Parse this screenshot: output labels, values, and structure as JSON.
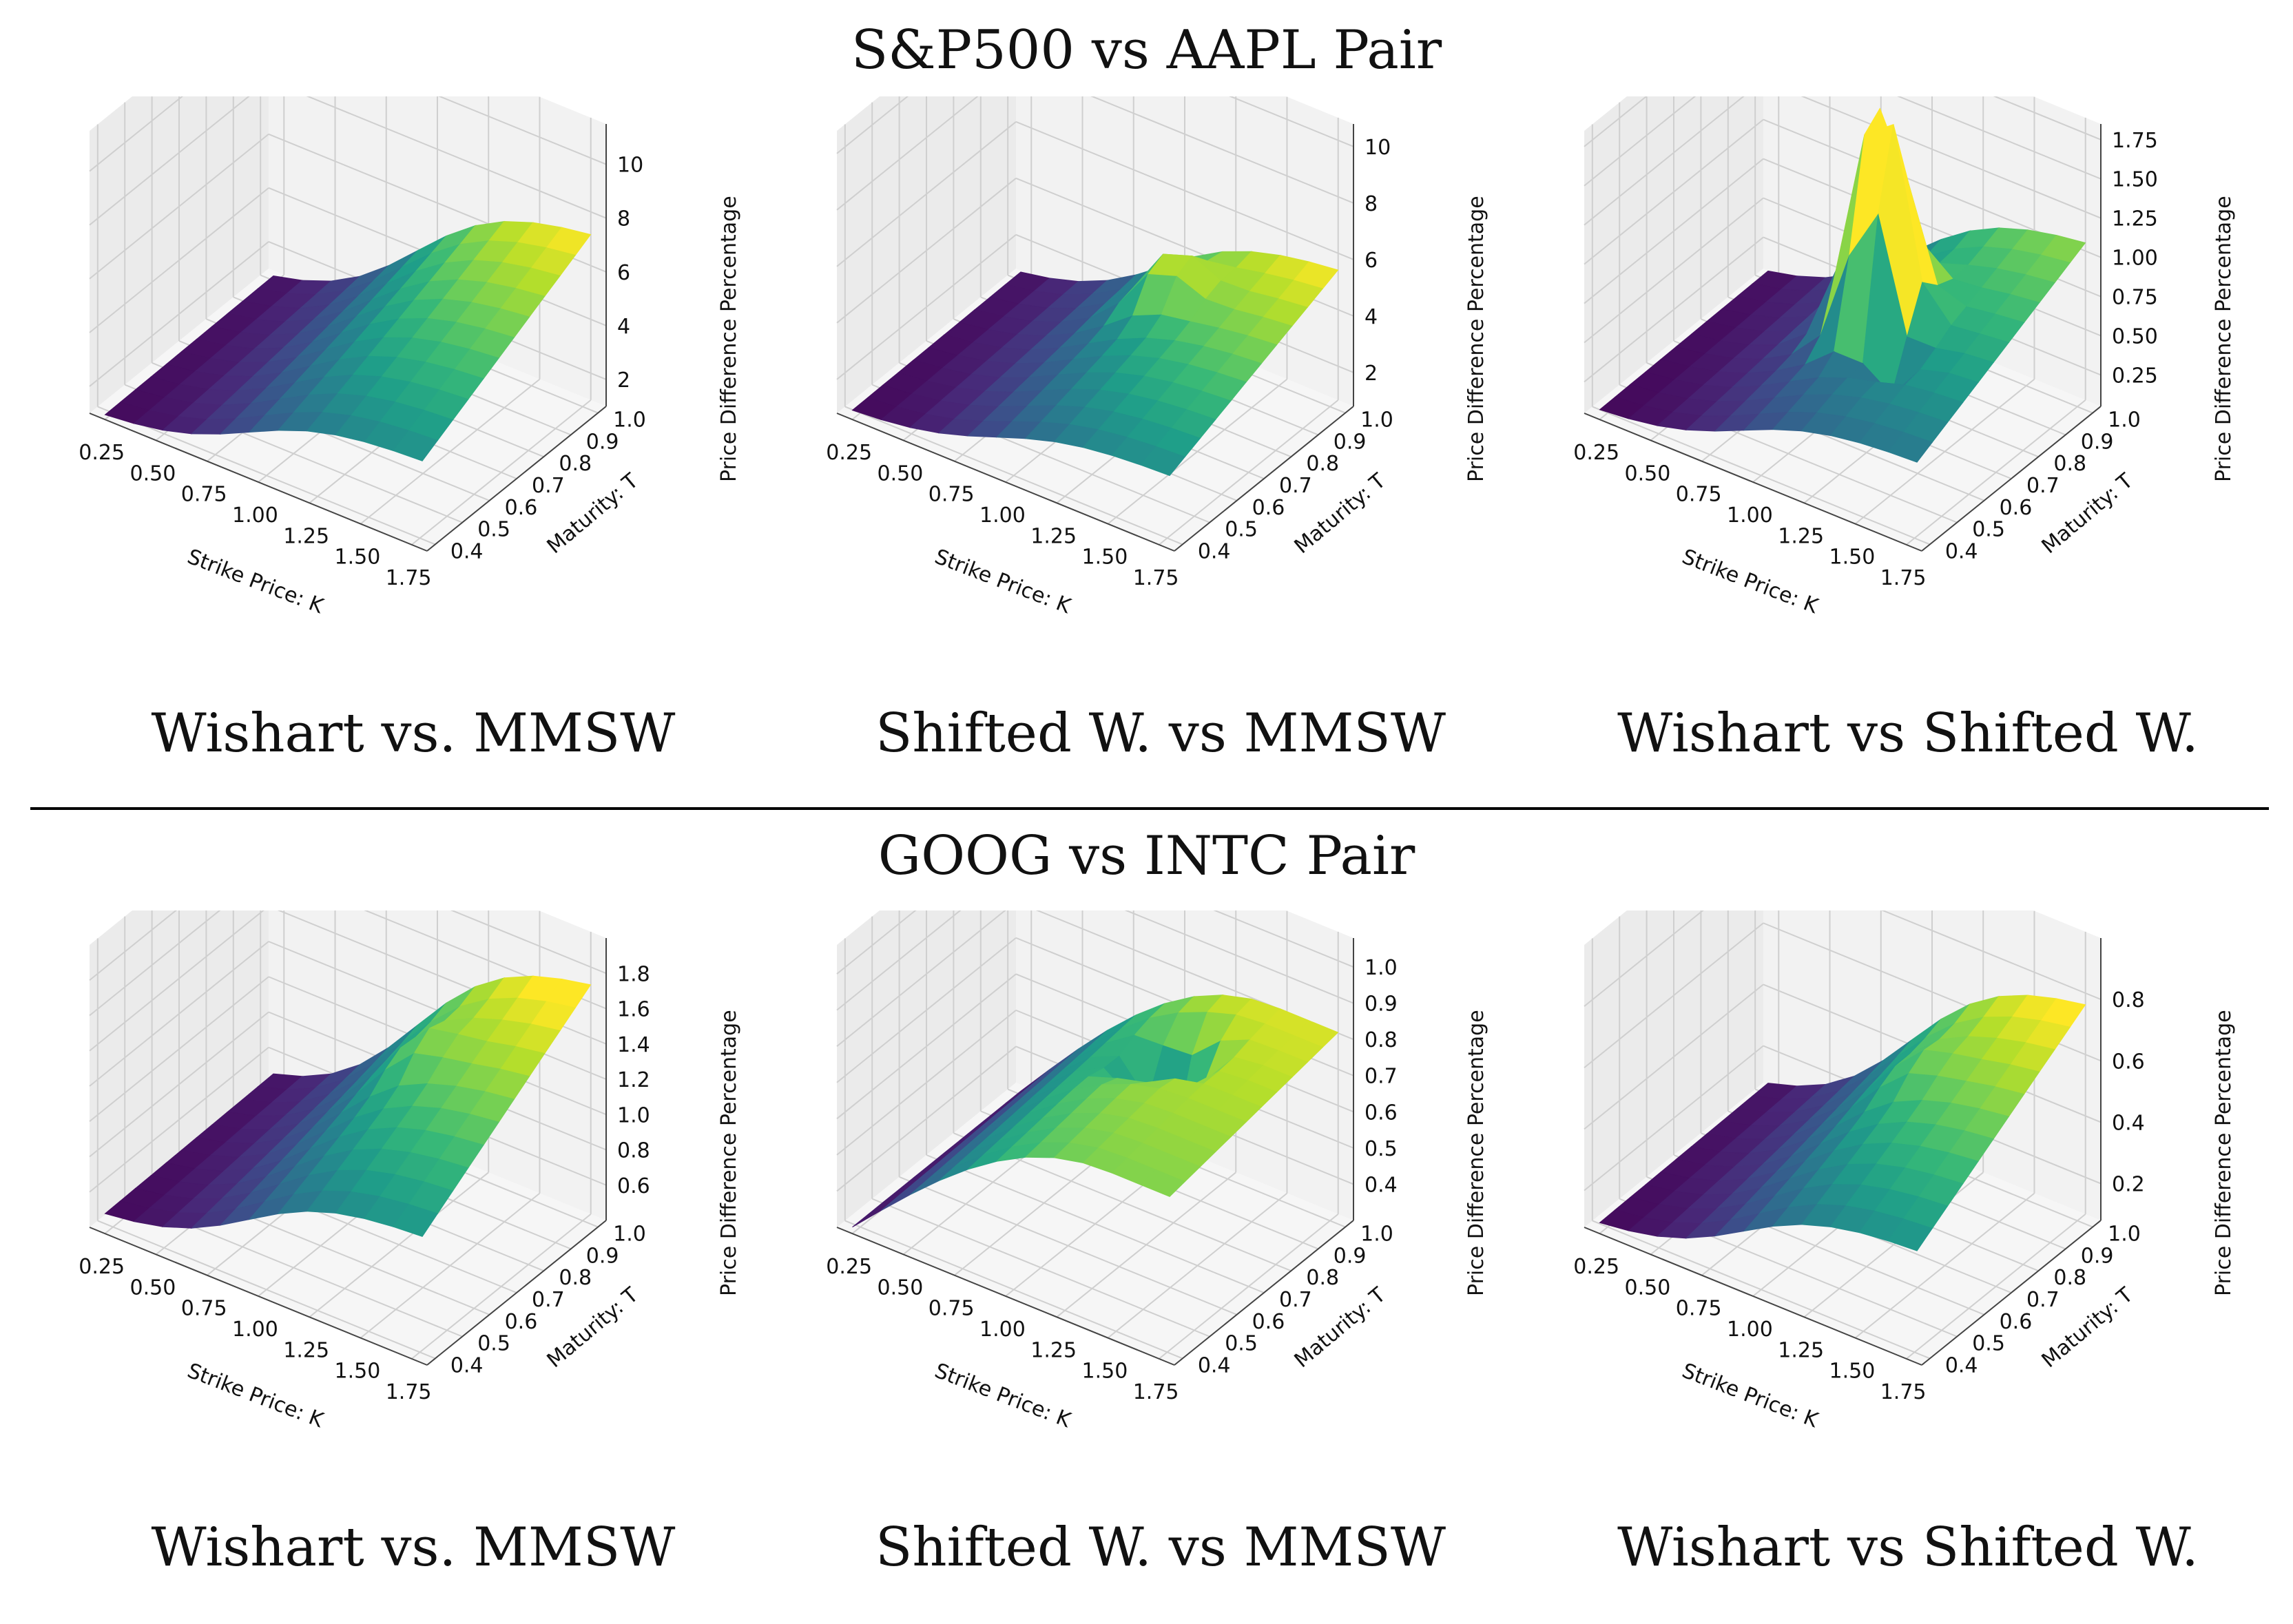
{
  "sections": [
    {
      "title": "S&P500 vs AAPL Pair"
    },
    {
      "title": "GOOG vs INTC Pair"
    }
  ],
  "colors": {
    "pane": "#f2f2f2",
    "grid": "#cfcfcf",
    "viridis": [
      "#440154",
      "#482878",
      "#3e4a89",
      "#31688e",
      "#26828e",
      "#1f9e89",
      "#35b779",
      "#6ece58",
      "#b5de2b",
      "#fde725"
    ]
  },
  "chart_data": [
    {
      "type": "surface3d",
      "section": 0,
      "title": "Wishart vs. MMSW",
      "xlabel": "Strike Price: K",
      "ylabel": "Maturity: T",
      "zlabel": "Price Difference Percentage",
      "xticks": [
        "0.25",
        "0.50",
        "0.75",
        "1.00",
        "1.25",
        "1.50",
        "1.75"
      ],
      "yticks": [
        "0.4",
        "0.5",
        "0.6",
        "0.7",
        "0.8",
        "0.9",
        "1.0"
      ],
      "zticks": [
        "2",
        "4",
        "6",
        "8",
        "10"
      ],
      "zlim": [
        1,
        11.5
      ],
      "surface": {
        "model": "ridge",
        "zmin": 0.8,
        "zmax": 6.8,
        "spike": 0,
        "spike_x": 0.57,
        "spike_y": 0.82,
        "max": 7.3,
        "curv": 0.5,
        "seed": 1
      }
    },
    {
      "type": "surface3d",
      "section": 0,
      "title": "Shifted W. vs MMSW",
      "xlabel": "Strike Price: K",
      "ylabel": "Maturity: T",
      "zlabel": "Price Difference Percentage",
      "xticks": [
        "0.25",
        "0.50",
        "0.75",
        "1.00",
        "1.25",
        "1.50",
        "1.75"
      ],
      "yticks": [
        "0.4",
        "0.5",
        "0.6",
        "0.7",
        "0.8",
        "0.9",
        "1.0"
      ],
      "zticks": [
        "2",
        "4",
        "6",
        "8",
        "10"
      ],
      "zlim": [
        0.8,
        10.8
      ],
      "surface": {
        "model": "ridge",
        "zmin": 0.8,
        "zmax": 5.2,
        "spike": 1.6,
        "spike_x": 0.58,
        "spike_y": 0.78,
        "max": 5.6,
        "curv": 0.5,
        "seed": 2
      }
    },
    {
      "type": "surface3d",
      "section": 0,
      "title": "Wishart vs Shifted W.",
      "xlabel": "Strike Price: K",
      "ylabel": "Maturity: T",
      "zlabel": "Price Difference Percentage",
      "xticks": [
        "0.25",
        "0.50",
        "0.75",
        "1.00",
        "1.25",
        "1.50",
        "1.75"
      ],
      "yticks": [
        "0.4",
        "0.5",
        "0.6",
        "0.7",
        "0.8",
        "0.9",
        "1.0"
      ],
      "zticks": [
        "0.25",
        "0.50",
        "0.75",
        "1.00",
        "1.25",
        "1.50",
        "1.75"
      ],
      "zlim": [
        0.05,
        1.85
      ],
      "surface": {
        "model": "spiky",
        "zmin": 0.05,
        "zmax": 1.0,
        "spike": 1.25,
        "spike_x": 0.55,
        "spike_y": 0.62,
        "max": 1.3,
        "curv": 0.3,
        "seed": 3
      }
    },
    {
      "type": "surface3d",
      "section": 1,
      "title": "Wishart vs. MMSW",
      "xlabel": "Strike Price: K",
      "ylabel": "Maturity: T",
      "zlabel": "Price Difference Percentage",
      "xticks": [
        "0.25",
        "0.50",
        "0.75",
        "1.00",
        "1.25",
        "1.50",
        "1.75"
      ],
      "yticks": [
        "0.4",
        "0.5",
        "0.6",
        "0.7",
        "0.8",
        "0.9",
        "1.0"
      ],
      "zticks": [
        "0.6",
        "0.8",
        "1.0",
        "1.2",
        "1.4",
        "1.6",
        "1.8"
      ],
      "zlim": [
        0.4,
        2.0
      ],
      "surface": {
        "model": "ridge",
        "zmin": 0.45,
        "zmax": 1.62,
        "spike": 0.12,
        "spike_x": 0.62,
        "spike_y": 0.7,
        "max": 1.65,
        "curv": 0.25,
        "seed": 4
      }
    },
    {
      "type": "surface3d",
      "section": 1,
      "title": "Shifted W. vs MMSW",
      "xlabel": "Strike Price: K",
      "ylabel": "Maturity: T",
      "zlabel": "Price Difference Percentage",
      "xticks": [
        "0.25",
        "0.50",
        "0.75",
        "1.00",
        "1.25",
        "1.50",
        "1.75"
      ],
      "yticks": [
        "0.4",
        "0.5",
        "0.6",
        "0.7",
        "0.8",
        "0.9",
        "1.0"
      ],
      "zticks": [
        "0.4",
        "0.5",
        "0.6",
        "0.7",
        "0.8",
        "0.9",
        "1.0"
      ],
      "zlim": [
        0.3,
        1.08
      ],
      "surface": {
        "model": "arch",
        "zmin": 0.3,
        "zmax": 0.82,
        "spike": -0.28,
        "spike_x": 0.62,
        "spike_y": 0.7,
        "max": 0.85,
        "curv": 1.0,
        "seed": 5
      }
    },
    {
      "type": "surface3d",
      "section": 1,
      "title": "Wishart vs Shifted W.",
      "xlabel": "Strike Price: K",
      "ylabel": "Maturity: T",
      "zlabel": "Price Difference Percentage",
      "xticks": [
        "0.25",
        "0.50",
        "0.75",
        "1.00",
        "1.25",
        "1.50",
        "1.75"
      ],
      "yticks": [
        "0.4",
        "0.5",
        "0.6",
        "0.7",
        "0.8",
        "0.9",
        "1.0"
      ],
      "zticks": [
        "0.2",
        "0.4",
        "0.6",
        "0.8"
      ],
      "zlim": [
        0.08,
        1.0
      ],
      "surface": {
        "model": "ridge",
        "zmin": 0.08,
        "zmax": 0.72,
        "spike": 0.05,
        "spike_x": 0.62,
        "spike_y": 0.7,
        "max": 0.75,
        "curv": 0.4,
        "seed": 6
      }
    }
  ]
}
